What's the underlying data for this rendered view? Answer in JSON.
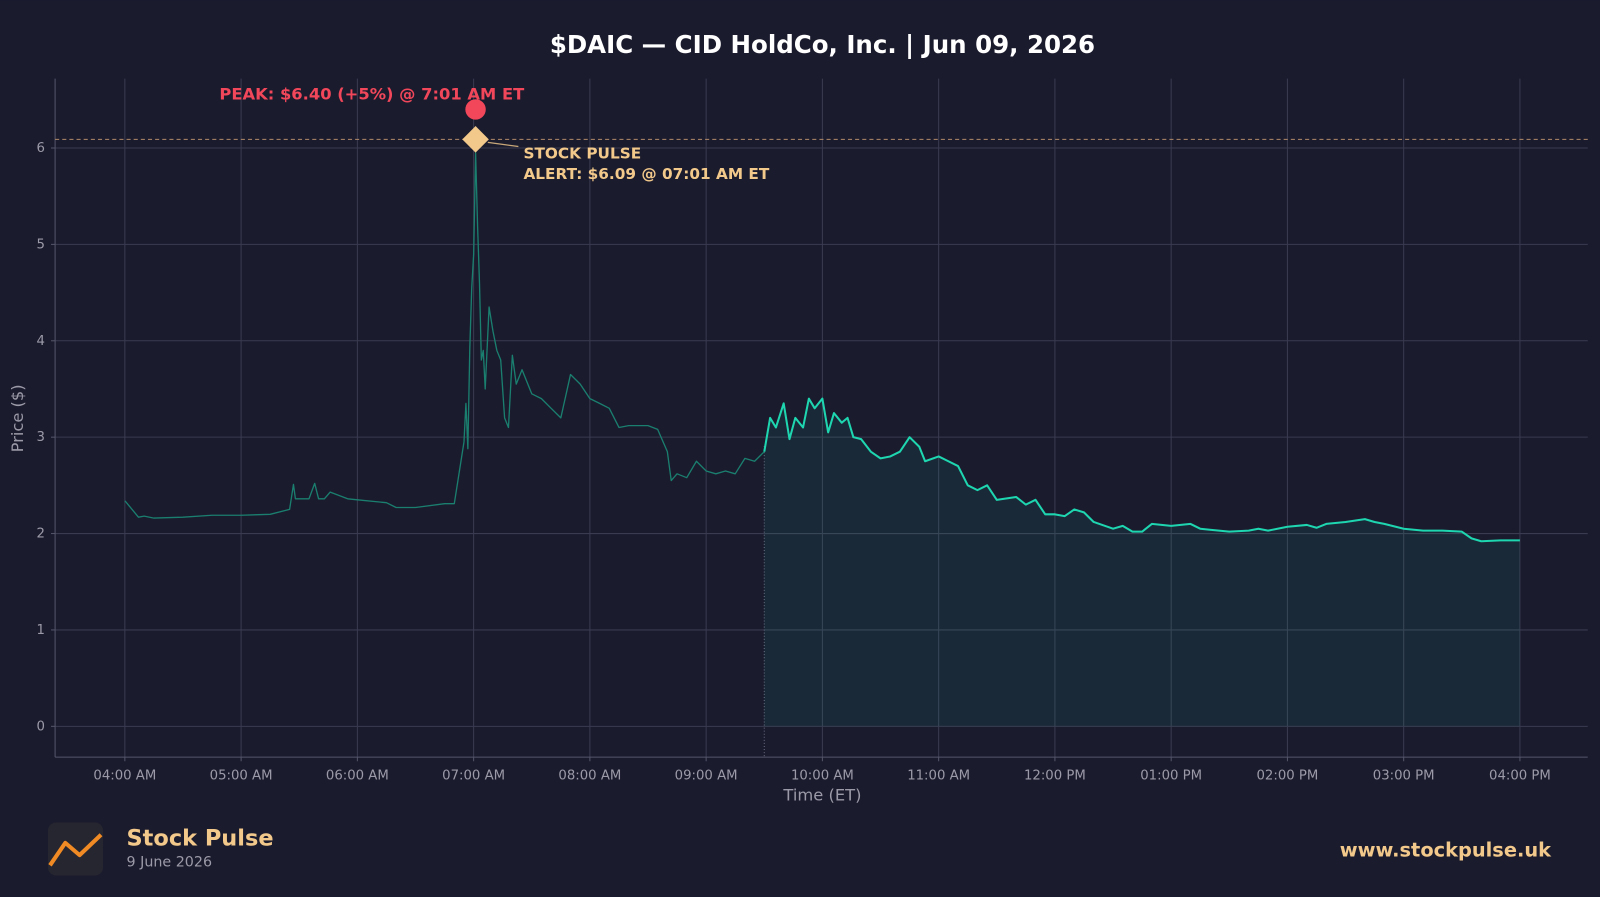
{
  "chart_data": {
    "type": "line",
    "title": "$DAIC — CID HoldCo, Inc.  |  Jun 09, 2026",
    "x_label": "Time (ET)",
    "y_label": "Price ($)",
    "xlim": [
      "03:24 AM",
      "04:35 PM"
    ],
    "xticks": [
      "04:00 AM",
      "05:00 AM",
      "06:00 AM",
      "07:00 AM",
      "08:00 AM",
      "09:00 AM",
      "10:00 AM",
      "11:00 AM",
      "12:00 PM",
      "01:00 PM",
      "02:00 PM",
      "03:00 PM",
      "04:00 PM"
    ],
    "ylim": [
      -0.32,
      6.72
    ],
    "yticks": [
      0,
      1,
      2,
      3,
      4,
      5,
      6
    ],
    "grid": true,
    "market_open": "09:30 AM",
    "series": [
      {
        "color": "#1a7f6e",
        "fill": false,
        "x": [
          "04:00 AM",
          "04:07 AM",
          "04:10 AM",
          "04:15 AM",
          "04:30 AM",
          "04:45 AM",
          "05:00 AM",
          "05:15 AM",
          "05:25 AM",
          "05:27 AM",
          "05:28 AM",
          "05:35 AM",
          "05:38 AM",
          "05:40 AM",
          "05:43 AM",
          "05:46 AM",
          "05:55 AM",
          "06:00 AM",
          "06:15 AM",
          "06:20 AM",
          "06:30 AM",
          "06:45 AM",
          "06:50 AM",
          "06:55 AM",
          "06:56 AM",
          "06:57 AM",
          "06:58 AM",
          "06:59 AM",
          "07:00 AM",
          "07:01 AM",
          "07:02 AM",
          "07:03 AM",
          "07:04 AM",
          "07:05 AM",
          "07:06 AM",
          "07:08 AM",
          "07:10 AM",
          "07:12 AM",
          "07:14 AM",
          "07:16 AM",
          "07:18 AM",
          "07:20 AM",
          "07:22 AM",
          "07:25 AM",
          "07:30 AM",
          "07:35 AM",
          "07:40 AM",
          "07:45 AM",
          "07:50 AM",
          "07:55 AM",
          "08:00 AM",
          "08:05 AM",
          "08:10 AM",
          "08:15 AM",
          "08:20 AM",
          "08:30 AM",
          "08:35 AM",
          "08:40 AM",
          "08:42 AM",
          "08:45 AM",
          "08:50 AM",
          "08:55 AM",
          "09:00 AM",
          "09:05 AM",
          "09:10 AM",
          "09:15 AM",
          "09:20 AM",
          "09:25 AM",
          "09:30 AM"
        ],
        "values": [
          2.34,
          2.17,
          2.18,
          2.16,
          2.17,
          2.19,
          2.19,
          2.2,
          2.25,
          2.51,
          2.36,
          2.36,
          2.52,
          2.36,
          2.36,
          2.43,
          2.36,
          2.35,
          2.32,
          2.27,
          2.27,
          2.31,
          2.31,
          2.95,
          3.35,
          2.88,
          3.92,
          4.55,
          4.9,
          5.95,
          5.2,
          4.6,
          3.8,
          3.9,
          3.5,
          4.35,
          4.1,
          3.9,
          3.8,
          3.2,
          3.1,
          3.85,
          3.55,
          3.7,
          3.45,
          3.4,
          3.3,
          3.2,
          3.65,
          3.55,
          3.4,
          3.35,
          3.3,
          3.1,
          3.12,
          3.12,
          3.08,
          2.85,
          2.55,
          2.62,
          2.58,
          2.75,
          2.65,
          2.62,
          2.65,
          2.62,
          2.78,
          2.75,
          2.85
        ]
      },
      {
        "color": "#1ed6b0",
        "fill": true,
        "x": [
          "09:30 AM",
          "09:33 AM",
          "09:36 AM",
          "09:40 AM",
          "09:43 AM",
          "09:46 AM",
          "09:50 AM",
          "09:53 AM",
          "09:56 AM",
          "10:00 AM",
          "10:03 AM",
          "10:06 AM",
          "10:10 AM",
          "10:13 AM",
          "10:16 AM",
          "10:20 AM",
          "10:25 AM",
          "10:30 AM",
          "10:35 AM",
          "10:40 AM",
          "10:45 AM",
          "10:50 AM",
          "10:53 AM",
          "11:00 AM",
          "11:05 AM",
          "11:10 AM",
          "11:15 AM",
          "11:20 AM",
          "11:25 AM",
          "11:30 AM",
          "11:40 AM",
          "11:45 AM",
          "11:50 AM",
          "11:55 AM",
          "12:00 PM",
          "12:05 PM",
          "12:10 PM",
          "12:15 PM",
          "12:20 PM",
          "12:30 PM",
          "12:35 PM",
          "12:40 PM",
          "12:45 PM",
          "12:50 PM",
          "01:00 PM",
          "01:10 PM",
          "01:15 PM",
          "01:20 PM",
          "01:30 PM",
          "01:40 PM",
          "01:45 PM",
          "01:50 PM",
          "02:00 PM",
          "02:10 PM",
          "02:15 PM",
          "02:20 PM",
          "02:30 PM",
          "02:40 PM",
          "02:45 PM",
          "02:50 PM",
          "03:00 PM",
          "03:10 PM",
          "03:20 PM",
          "03:30 PM",
          "03:35 PM",
          "03:40 PM",
          "03:50 PM",
          "04:00 PM"
        ],
        "values": [
          2.85,
          3.2,
          3.1,
          3.35,
          2.98,
          3.2,
          3.1,
          3.4,
          3.3,
          3.4,
          3.05,
          3.25,
          3.15,
          3.2,
          3.0,
          2.98,
          2.85,
          2.78,
          2.8,
          2.85,
          3.0,
          2.9,
          2.75,
          2.8,
          2.75,
          2.7,
          2.5,
          2.45,
          2.5,
          2.35,
          2.38,
          2.3,
          2.35,
          2.2,
          2.2,
          2.18,
          2.25,
          2.22,
          2.12,
          2.05,
          2.08,
          2.02,
          2.02,
          2.1,
          2.08,
          2.1,
          2.05,
          2.04,
          2.02,
          2.03,
          2.05,
          2.03,
          2.07,
          2.09,
          2.06,
          2.1,
          2.12,
          2.15,
          2.12,
          2.1,
          2.05,
          2.03,
          2.03,
          2.02,
          1.95,
          1.92,
          1.93,
          1.93
        ]
      }
    ],
    "peak": {
      "x": "07:01 AM",
      "value": 6.4,
      "color": "#f2475a",
      "label": "PEAK: $6.40 (+5%) @ 7:01 AM ET"
    },
    "alert": {
      "x": "07:01 AM",
      "value": 6.09,
      "color": "#f2c98a",
      "label": [
        "STOCK PULSE",
        "ALERT: $6.09 @ 07:01 AM ET"
      ]
    }
  },
  "footer": {
    "brand": "Stock Pulse",
    "date": "9 June 2026",
    "url": "www.stockpulse.uk"
  }
}
